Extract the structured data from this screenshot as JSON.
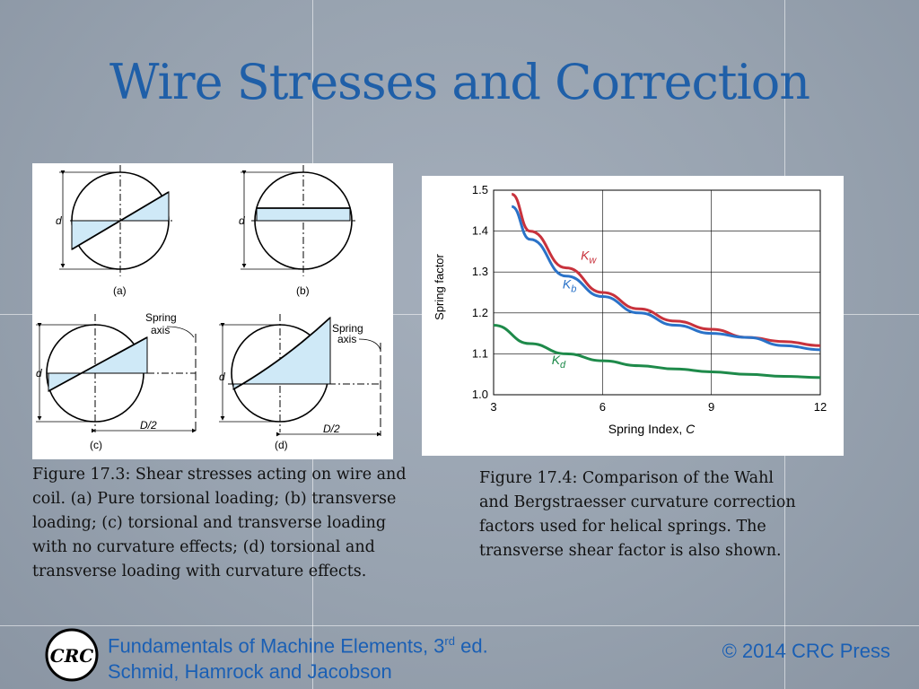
{
  "slide": {
    "title": "Wire Stresses and Correction"
  },
  "figure_17_3": {
    "caption": "Figure 17.3: Shear stresses acting on wire and coil. (a) Pure torsional loading; (b) transverse loading; (c) torsional and transverse loading with no curvature effects; (d) torsional and transverse loading with curvature effects.",
    "labels": {
      "d": "d",
      "a": "(a)",
      "b": "(b)",
      "c": "(c)",
      "dd": "(d)",
      "spring": "Spring",
      "axis": "axis",
      "d2": "D/2"
    }
  },
  "figure_17_4": {
    "caption": "Figure 17.4:  Comparison of the Wahl and Bergstraesser curvature correction factors used for helical springs. The transverse shear factor is also shown."
  },
  "chart_data": {
    "type": "line",
    "xlabel": "Spring Index, C",
    "ylabel": "Spring factor",
    "xlim": [
      3,
      12
    ],
    "ylim": [
      1.0,
      1.5
    ],
    "x_ticks": [
      3,
      6,
      9,
      12
    ],
    "y_ticks": [
      1.0,
      1.1,
      1.2,
      1.3,
      1.4,
      1.5
    ],
    "grid": true,
    "series": [
      {
        "name": "Kw",
        "base": "K",
        "sub": "w",
        "color": "#c8323c",
        "x": [
          3.5,
          4,
          5,
          6,
          7,
          8,
          9,
          10,
          11,
          12
        ],
        "y": [
          1.49,
          1.4,
          1.31,
          1.25,
          1.21,
          1.18,
          1.16,
          1.14,
          1.13,
          1.12
        ]
      },
      {
        "name": "Kb",
        "base": "K",
        "sub": "b",
        "color": "#2a72c8",
        "x": [
          3.5,
          4,
          5,
          6,
          7,
          8,
          9,
          10,
          11,
          12
        ],
        "y": [
          1.46,
          1.38,
          1.29,
          1.24,
          1.2,
          1.17,
          1.15,
          1.14,
          1.12,
          1.11
        ]
      },
      {
        "name": "Kd",
        "base": "K",
        "sub": "d",
        "color": "#1e8a4a",
        "x": [
          3,
          4,
          5,
          6,
          7,
          8,
          9,
          10,
          11,
          12
        ],
        "y": [
          1.17,
          1.125,
          1.1,
          1.083,
          1.071,
          1.063,
          1.056,
          1.05,
          1.045,
          1.042
        ]
      }
    ]
  },
  "footer": {
    "book_title": "Fundamentals of Machine Elements, 3",
    "book_edition_sup": "rd",
    "book_edition_suffix": " ed.",
    "authors": "Schmid, Hamrock and Jacobson",
    "copyright": "© 2014 CRC Press",
    "logo_text": "CRC"
  }
}
